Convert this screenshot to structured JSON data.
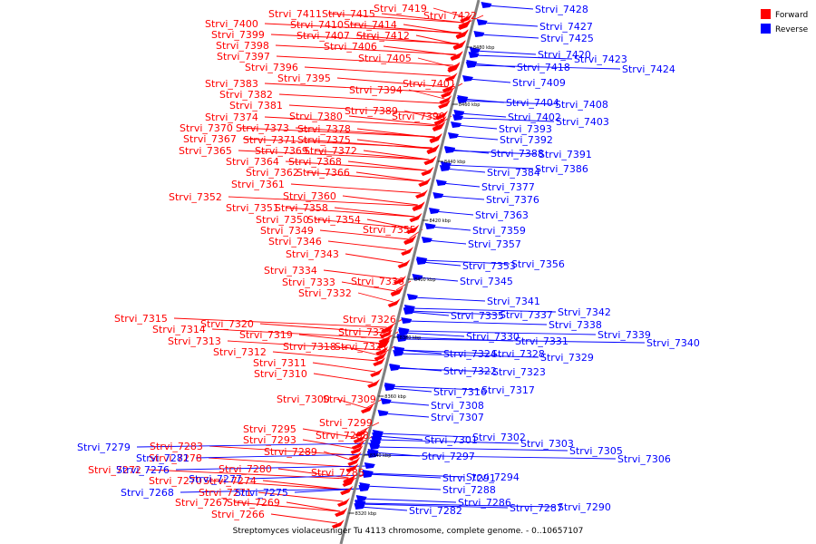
{
  "colors": {
    "forward": "#ff0000",
    "reverse": "#0000ff",
    "axis": "#808080"
  },
  "legend": {
    "forward_label": "Forward",
    "reverse_label": "Reverse"
  },
  "caption": "Streptomyces violaceusniger Tu 4113 chromosome, complete genome. - 0..10657107",
  "axis_ticks": [
    "8480 kbp",
    "8460 kbp",
    "8440 kbp",
    "8420 kbp",
    "8400 kbp",
    "8380 kbp",
    "8360 kbp",
    "8340 kbp",
    "8320 kbp"
  ],
  "forward_genes": [
    "Strvi_7419",
    "Strvi_7411",
    "Strvi_7415",
    "Strvi_7422",
    "Strvi_7410",
    "Strvi_7414",
    "Strvi_7400",
    "Strvi_7407",
    "Strvi_7412",
    "Strvi_7399",
    "Strvi_7406",
    "Strvi_7398",
    "Strvi_7397",
    "Strvi_7405",
    "Strvi_7396",
    "Strvi_7395",
    "Strvi_7383",
    "Strvi_7401",
    "Strvi_7394",
    "Strvi_7382",
    "Strvi_7381",
    "Strvi_7389",
    "Strvi_7374",
    "Strvi_7380",
    "Strvi_7390",
    "Strvi_7370",
    "Strvi_7373",
    "Strvi_7378",
    "Strvi_7367",
    "Strvi_7371",
    "Strvi_7375",
    "Strvi_7365",
    "Strvi_7369",
    "Strvi_7372",
    "Strvi_7364",
    "Strvi_7368",
    "Strvi_7362",
    "Strvi_7366",
    "Strvi_7361",
    "Strvi_7352",
    "Strvi_7360",
    "Strvi_7351",
    "Strvi_7358",
    "Strvi_7350",
    "Strvi_7354",
    "Strvi_7349",
    "Strvi_7355",
    "Strvi_7346",
    "Strvi_7343",
    "Strvi_7334",
    "Strvi_7333",
    "Strvi_7336",
    "Strvi_7332",
    "Strvi_7326",
    "Strvi_7315",
    "Strvi_7320",
    "Strvi_7314",
    "Strvi_7319",
    "Strvi_7325",
    "Strvi_7313",
    "Strvi_7318",
    "Strvi_7321",
    "Strvi_7312",
    "Strvi_7311",
    "Strvi_7310",
    "Strvi_7300",
    "Strvi_7309",
    "Strvi_7299",
    "Strvi_7295",
    "Strvi_7298",
    "Strvi_7293",
    "Strvi_7289",
    "Strvi_7283",
    "Strvi_7278",
    "Strvi_7272",
    "Strvi_7285",
    "Strvi_7280",
    "Strvi_7270",
    "Strvi_7274",
    "Strvi_7271",
    "Strvi_7267",
    "Strvi_7269",
    "Strvi_7266"
  ],
  "reverse_genes": [
    "Strvi_7428",
    "Strvi_7427",
    "Strvi_7425",
    "Strvi_7420",
    "Strvi_7423",
    "Strvi_7418",
    "Strvi_7424",
    "Strvi_7409",
    "Strvi_7404",
    "Strvi_7408",
    "Strvi_7402",
    "Strvi_7403",
    "Strvi_7393",
    "Strvi_7392",
    "Strvi_7388",
    "Strvi_7391",
    "Strvi_7384",
    "Strvi_7386",
    "Strvi_7377",
    "Strvi_7376",
    "Strvi_7363",
    "Strvi_7359",
    "Strvi_7357",
    "Strvi_7353",
    "Strvi_7356",
    "Strvi_7345",
    "Strvi_7341",
    "Strvi_7342",
    "Strvi_7335",
    "Strvi_7337",
    "Strvi_7338",
    "Strvi_7339",
    "Strvi_7330",
    "Strvi_7331",
    "Strvi_7340",
    "Strvi_7324",
    "Strvi_7328",
    "Strvi_7329",
    "Strvi_7322",
    "Strvi_7323",
    "Strvi_7316",
    "Strvi_7317",
    "Strvi_7308",
    "Strvi_7307",
    "Strvi_7301",
    "Strvi_7302",
    "Strvi_7303",
    "Strvi_7305",
    "Strvi_7306",
    "Strvi_7297",
    "Strvi_7294",
    "Strvi_7291",
    "Strvi_7288",
    "Strvi_7286",
    "Strvi_7287",
    "Strvi_7290",
    "Strvi_7282",
    "Strvi_7279",
    "Strvi_7281",
    "Strvi_7276",
    "Strvi_7277",
    "Strvi_7268",
    "Strvi_7275"
  ]
}
